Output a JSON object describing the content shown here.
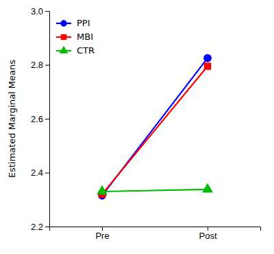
{
  "chart_data": {
    "type": "line",
    "y_label": "Estimated Marginal Means",
    "categories": [
      "Pre",
      "Post"
    ],
    "series": [
      {
        "name": "PPI",
        "color": "#0000FF",
        "marker": "circle",
        "values": [
          2.315,
          2.825
        ]
      },
      {
        "name": "MBI",
        "color": "#FF0000",
        "marker": "square",
        "values": [
          2.32,
          2.795
        ]
      },
      {
        "name": "CTR",
        "color": "#00BB00",
        "marker": "triangle",
        "values": [
          2.33,
          2.338
        ]
      }
    ],
    "ylim": [
      2.2,
      3.0
    ],
    "yticks": [
      2.2,
      2.4,
      2.6,
      2.8,
      {
        "value": 3.0,
        "label": "3.0"
      }
    ],
    "grid": false,
    "legend": "upper left"
  }
}
